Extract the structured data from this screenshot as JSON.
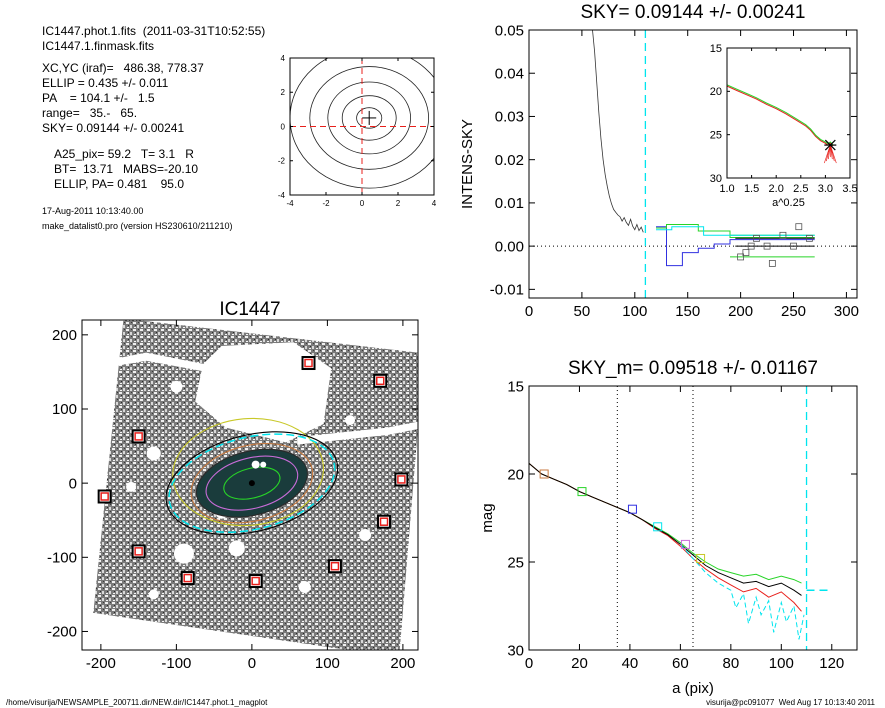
{
  "header": {
    "lines": [
      "IC1447.phot.1.fits  (2011-03-31T10:52:55)",
      "IC1447.1.finmask.fits",
      "XC,YC (iraf)=   486.38, 778.37",
      "ELLIP = 0.435 +/- 0.011",
      "PA    = 104.1 +/-   1.5",
      "range=   35.-   65.",
      "SKY= 0.09144 +/- 0.00241",
      "A25_pix= 59.2   T= 3.1   R",
      "BT=  13.71   MABS=-20.10",
      "ELLIP, PA= 0.481    95.0",
      "17-Aug-2011 10:13:40.00",
      "make_datalist0.pro (version HS230610/211210)"
    ]
  },
  "footer": {
    "left": "/home/visurija/NEWSAMPLE_200711.dir/NEW.dir/IC1447.phot.1_magplot",
    "right": "visurija@pc091077  Wed Aug 17 10:13:40 2011"
  },
  "colors": {
    "sky_line": "#00e5ee",
    "red": "#e8201c",
    "green": "#28d428",
    "blue": "#3030e0",
    "black": "#000000"
  },
  "chart_data": [
    {
      "id": "contour",
      "type": "contour",
      "title": "",
      "xlabel": "",
      "ylabel": "",
      "xlim": [
        -4,
        4
      ],
      "ylim": [
        -4,
        4
      ],
      "xticks": [
        -4,
        -2,
        0,
        2,
        4
      ],
      "yticks": [
        -4,
        -2,
        0,
        2,
        4
      ],
      "center": [
        0.4,
        0.5
      ],
      "contours": [
        {
          "rx": 0.7,
          "ry": 0.6
        },
        {
          "rx": 1.5,
          "ry": 1.3
        },
        {
          "rx": 2.3,
          "ry": 2.1
        },
        {
          "rx": 3.3,
          "ry": 3.0
        },
        {
          "rx": 4.4,
          "ry": 4.1
        }
      ]
    },
    {
      "id": "sky",
      "type": "line",
      "title": "SKY= 0.09144 +/- 0.00241",
      "xlabel": "",
      "ylabel": "INTENS-SKY",
      "xlim": [
        0,
        310
      ],
      "ylim": [
        -0.012,
        0.05
      ],
      "xticks": [
        0,
        50,
        100,
        150,
        200,
        250,
        300
      ],
      "yticks": [
        -0.01,
        0.0,
        0.01,
        0.02,
        0.03,
        0.04,
        0.05
      ],
      "ytick_labels": [
        "-0.01",
        "0.00",
        "0.01",
        "0.02",
        "0.03",
        "0.04",
        "0.05"
      ],
      "sky_radius": 110,
      "profile": [
        [
          60,
          0.05
        ],
        [
          62,
          0.045
        ],
        [
          64,
          0.038
        ],
        [
          66,
          0.031
        ],
        [
          68,
          0.025
        ],
        [
          70,
          0.02
        ],
        [
          72,
          0.0165
        ],
        [
          74,
          0.0138
        ],
        [
          76,
          0.0115
        ],
        [
          78,
          0.0098
        ],
        [
          80,
          0.0085
        ],
        [
          82,
          0.0078
        ],
        [
          84,
          0.0072
        ],
        [
          86,
          0.0068
        ],
        [
          88,
          0.0058
        ],
        [
          90,
          0.0066
        ],
        [
          92,
          0.0055
        ],
        [
          94,
          0.0048
        ],
        [
          96,
          0.0062
        ],
        [
          98,
          0.0046
        ],
        [
          100,
          0.0038
        ],
        [
          102,
          0.005
        ],
        [
          104,
          0.0036
        ],
        [
          106,
          0.0044
        ],
        [
          108,
          0.0032
        ]
      ],
      "series": [
        {
          "name": "",
          "color": "#3030e0",
          "values": [
            [
              120,
              0.0045
            ],
            [
              130,
              0.0045
            ],
            [
              130,
              -0.0045
            ],
            [
              145,
              -0.0045
            ],
            [
              145,
              -0.0015
            ],
            [
              160,
              -0.0015
            ],
            [
              160,
              -0.0005
            ],
            [
              175,
              -0.0005
            ],
            [
              175,
              0.0005
            ],
            [
              190,
              0.0005
            ],
            [
              190,
              0.0015
            ],
            [
              270,
              0.0015
            ]
          ]
        },
        {
          "name": "",
          "color": "#28d428",
          "values": [
            [
              120,
              0.0042
            ],
            [
              130,
              0.0042
            ],
            [
              130,
              0.005
            ],
            [
              160,
              0.005
            ],
            [
              160,
              0.0035
            ],
            [
              190,
              0.0035
            ],
            [
              190,
              0.002
            ],
            [
              270,
              0.002
            ]
          ]
        },
        {
          "name": "",
          "color": "#28d428",
          "values": [
            [
              190,
              -0.0025
            ],
            [
              270,
              -0.0025
            ]
          ]
        },
        {
          "name": "",
          "color": "#28d428",
          "values": [
            [
              190,
              0.0025
            ],
            [
              270,
              0.0025
            ]
          ]
        },
        {
          "name": "",
          "color": "#00e5ee",
          "values": [
            [
              120,
              0.0038
            ],
            [
              135,
              0.0038
            ],
            [
              135,
              0.0045
            ],
            [
              165,
              0.0045
            ],
            [
              165,
              0.0025
            ],
            [
              270,
              0.0025
            ]
          ]
        },
        {
          "name": "",
          "color": "#000000",
          "values": [
            [
              195,
              0.0
            ],
            [
              270,
              0.0
            ]
          ]
        },
        {
          "name": "",
          "color": "#000000",
          "values": [
            [
              195,
              0.0018
            ],
            [
              270,
              0.0018
            ]
          ]
        }
      ],
      "squares": [
        [
          200,
          -0.0025
        ],
        [
          205,
          -0.0015
        ],
        [
          210,
          0.0
        ],
        [
          215,
          0.0018
        ],
        [
          225,
          0.0
        ],
        [
          230,
          -0.004
        ],
        [
          240,
          0.0025
        ],
        [
          250,
          0.0
        ],
        [
          255,
          0.0045
        ],
        [
          265,
          0.0018
        ]
      ],
      "inset": {
        "xlabel": "a^0.25",
        "xlim": [
          1.0,
          3.5
        ],
        "ylim": [
          15,
          30
        ],
        "xticks": [
          1.0,
          1.5,
          2.0,
          2.5,
          3.0,
          3.5
        ],
        "xtick_labels": [
          "1.0",
          "1.5",
          "2.0",
          "2.5",
          "3.0",
          "3.5"
        ],
        "yticks": [
          15,
          20,
          25,
          30
        ],
        "curve": [
          [
            1.0,
            19.4
          ],
          [
            1.2,
            19.9
          ],
          [
            1.4,
            20.4
          ],
          [
            1.6,
            20.9
          ],
          [
            1.8,
            21.5
          ],
          [
            2.0,
            22.0
          ],
          [
            2.2,
            22.6
          ],
          [
            2.4,
            23.3
          ],
          [
            2.6,
            24.0
          ],
          [
            2.7,
            24.5
          ],
          [
            2.8,
            25.2
          ],
          [
            2.9,
            25.7
          ],
          [
            3.0,
            26.0
          ],
          [
            3.05,
            26.2
          ],
          [
            3.1,
            26.0
          ],
          [
            3.15,
            26.3
          ]
        ],
        "star": [
          3.1,
          26.2
        ]
      }
    },
    {
      "id": "image",
      "type": "image",
      "title": "IC1447",
      "xlabel": "",
      "ylabel": "",
      "xlim": [
        -225,
        220
      ],
      "ylim": [
        -225,
        220
      ],
      "xticks": [
        -200,
        -100,
        0,
        100,
        200
      ],
      "yticks": [
        -200,
        -100,
        0,
        100,
        200
      ],
      "markers": [
        [
          75,
          162
        ],
        [
          170,
          138
        ],
        [
          -150,
          63
        ],
        [
          -195,
          -18
        ],
        [
          198,
          5
        ],
        [
          -150,
          -92
        ],
        [
          -85,
          -128
        ],
        [
          5,
          -132
        ],
        [
          110,
          -112
        ],
        [
          175,
          -52
        ]
      ],
      "ellipses": [
        {
          "cx": 0,
          "cy": 0,
          "rx": 75,
          "ry": 43,
          "angle": -14,
          "color": "#2a2a2a",
          "fill": "#1a3c3c"
        },
        {
          "cx": 0,
          "cy": 0,
          "rx": 38,
          "ry": 20,
          "angle": -14,
          "color": "#28d428",
          "fill": "none"
        },
        {
          "cx": 0,
          "cy": 0,
          "rx": 62,
          "ry": 34,
          "angle": -14,
          "color": "#c86cd8",
          "fill": "none"
        },
        {
          "cx": 0,
          "cy": 0,
          "rx": 82,
          "ry": 51,
          "angle": -14,
          "color": "#c87a40",
          "fill": "none"
        },
        {
          "cx": -5,
          "cy": 15,
          "rx": 100,
          "ry": 72,
          "angle": -5,
          "color": "#c8c828",
          "fill": "none"
        },
        {
          "cx": 0,
          "cy": 0,
          "rx": 112,
          "ry": 62,
          "angle": -14,
          "color": "#00e5ee",
          "fill": "none"
        },
        {
          "cx": 0,
          "cy": 0,
          "rx": 116,
          "ry": 65,
          "angle": -14,
          "color": "#000000",
          "fill": "none"
        }
      ]
    },
    {
      "id": "mag",
      "type": "line",
      "title": "SKY_m=  0.09518 +/- 0.01167",
      "xlabel": "a (pix)",
      "ylabel": "mag",
      "xlim": [
        0,
        130
      ],
      "ylim": [
        30,
        15
      ],
      "xticks": [
        0,
        20,
        40,
        60,
        80,
        100,
        120
      ],
      "yticks": [
        15,
        20,
        25,
        30
      ],
      "vlines": [
        35,
        65
      ],
      "sky_radius": 110,
      "sky_level": [
        [
          110,
          26.6
        ],
        [
          120,
          26.6
        ]
      ],
      "series": [
        {
          "name": "",
          "color": "#28d428",
          "values": [
            [
              0,
              19.4
            ],
            [
              5,
              20.0
            ],
            [
              10,
              20.3
            ],
            [
              15,
              20.6
            ],
            [
              20,
              21.0
            ],
            [
              25,
              21.3
            ],
            [
              30,
              21.6
            ],
            [
              35,
              21.9
            ],
            [
              40,
              22.2
            ],
            [
              45,
              22.6
            ],
            [
              50,
              23.0
            ],
            [
              55,
              23.4
            ],
            [
              60,
              23.9
            ],
            [
              65,
              24.5
            ],
            [
              70,
              25.0
            ],
            [
              75,
              25.4
            ],
            [
              80,
              25.6
            ],
            [
              85,
              25.8
            ],
            [
              90,
              25.7
            ],
            [
              95,
              26.0
            ],
            [
              100,
              25.8
            ],
            [
              105,
              26.0
            ],
            [
              108,
              26.2
            ]
          ]
        },
        {
          "name": "",
          "color": "#e8201c",
          "values": [
            [
              0,
              19.4
            ],
            [
              5,
              20.0
            ],
            [
              10,
              20.3
            ],
            [
              15,
              20.6
            ],
            [
              20,
              21.0
            ],
            [
              25,
              21.3
            ],
            [
              30,
              21.6
            ],
            [
              35,
              21.9
            ],
            [
              40,
              22.2
            ],
            [
              45,
              22.6
            ],
            [
              50,
              23.1
            ],
            [
              55,
              23.5
            ],
            [
              60,
              24.1
            ],
            [
              65,
              24.8
            ],
            [
              70,
              25.4
            ],
            [
              75,
              25.9
            ],
            [
              80,
              26.3
            ],
            [
              85,
              26.7
            ],
            [
              90,
              26.5
            ],
            [
              95,
              27.0
            ],
            [
              100,
              26.7
            ],
            [
              105,
              27.3
            ],
            [
              108,
              27.8
            ]
          ]
        },
        {
          "name": "",
          "color": "#000000",
          "values": [
            [
              0,
              19.4
            ],
            [
              5,
              20.0
            ],
            [
              10,
              20.3
            ],
            [
              15,
              20.6
            ],
            [
              20,
              21.0
            ],
            [
              25,
              21.3
            ],
            [
              30,
              21.6
            ],
            [
              35,
              21.9
            ],
            [
              40,
              22.2
            ],
            [
              45,
              22.6
            ],
            [
              50,
              23.05
            ],
            [
              55,
              23.45
            ],
            [
              60,
              24.0
            ],
            [
              65,
              24.6
            ],
            [
              70,
              25.2
            ],
            [
              75,
              25.6
            ],
            [
              80,
              25.9
            ],
            [
              85,
              26.2
            ],
            [
              90,
              26.1
            ],
            [
              95,
              26.4
            ],
            [
              100,
              26.2
            ],
            [
              105,
              26.6
            ],
            [
              108,
              26.9
            ]
          ]
        },
        {
          "name": "",
          "color": "#00e5ee",
          "values": [
            [
              60,
              24.0
            ],
            [
              65,
              24.8
            ],
            [
              70,
              25.6
            ],
            [
              75,
              26.2
            ],
            [
              80,
              26.6
            ],
            [
              82,
              27.6
            ],
            [
              85,
              26.8
            ],
            [
              87,
              28.5
            ],
            [
              90,
              27.0
            ],
            [
              92,
              28.0
            ],
            [
              95,
              27.2
            ],
            [
              97,
              29.0
            ],
            [
              100,
              27.3
            ],
            [
              102,
              28.4
            ],
            [
              105,
              27.5
            ],
            [
              107,
              29.4
            ],
            [
              109,
              28.0
            ]
          ]
        }
      ],
      "squares": [
        {
          "x": 6,
          "y": 20.0,
          "color": "#c87a40"
        },
        {
          "x": 21,
          "y": 21.0,
          "color": "#28d428"
        },
        {
          "x": 41,
          "y": 22.0,
          "color": "#3030e0"
        },
        {
          "x": 51,
          "y": 23.0,
          "color": "#00e5ee"
        },
        {
          "x": 62,
          "y": 24.0,
          "color": "#c86cd8"
        },
        {
          "x": 68,
          "y": 24.8,
          "color": "#c8c828"
        }
      ]
    }
  ]
}
